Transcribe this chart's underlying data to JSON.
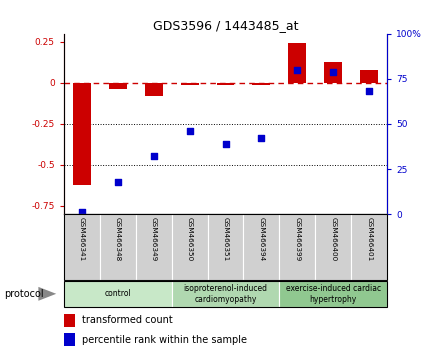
{
  "title": "GDS3596 / 1443485_at",
  "samples": [
    "GSM466341",
    "GSM466348",
    "GSM466349",
    "GSM466350",
    "GSM466351",
    "GSM466394",
    "GSM466399",
    "GSM466400",
    "GSM466401"
  ],
  "transformed_count": [
    -0.62,
    -0.04,
    -0.08,
    -0.01,
    -0.01,
    -0.01,
    0.24,
    0.13,
    0.08
  ],
  "percentile_rank": [
    1,
    18,
    32,
    46,
    39,
    42,
    80,
    79,
    68
  ],
  "groups": [
    {
      "label": "control",
      "start": 0,
      "end": 3,
      "color": "#c8e8c8"
    },
    {
      "label": "isoproterenol-induced\ncardiomyopathy",
      "start": 3,
      "end": 6,
      "color": "#b0d8b0"
    },
    {
      "label": "exercise-induced cardiac\nhypertrophy",
      "start": 6,
      "end": 9,
      "color": "#90c890"
    }
  ],
  "ylim_left": [
    -0.8,
    0.3
  ],
  "ylim_right": [
    0,
    100
  ],
  "left_ticks": [
    0.25,
    0.0,
    -0.25,
    -0.5,
    -0.75
  ],
  "right_ticks": [
    100,
    75,
    50,
    25,
    0
  ],
  "bar_color": "#cc0000",
  "dot_color": "#0000cc",
  "hline_y": 0.0,
  "dotted_lines": [
    -0.25,
    -0.5
  ],
  "legend_bar_label": "transformed count",
  "legend_dot_label": "percentile rank within the sample",
  "protocol_label": "protocol"
}
